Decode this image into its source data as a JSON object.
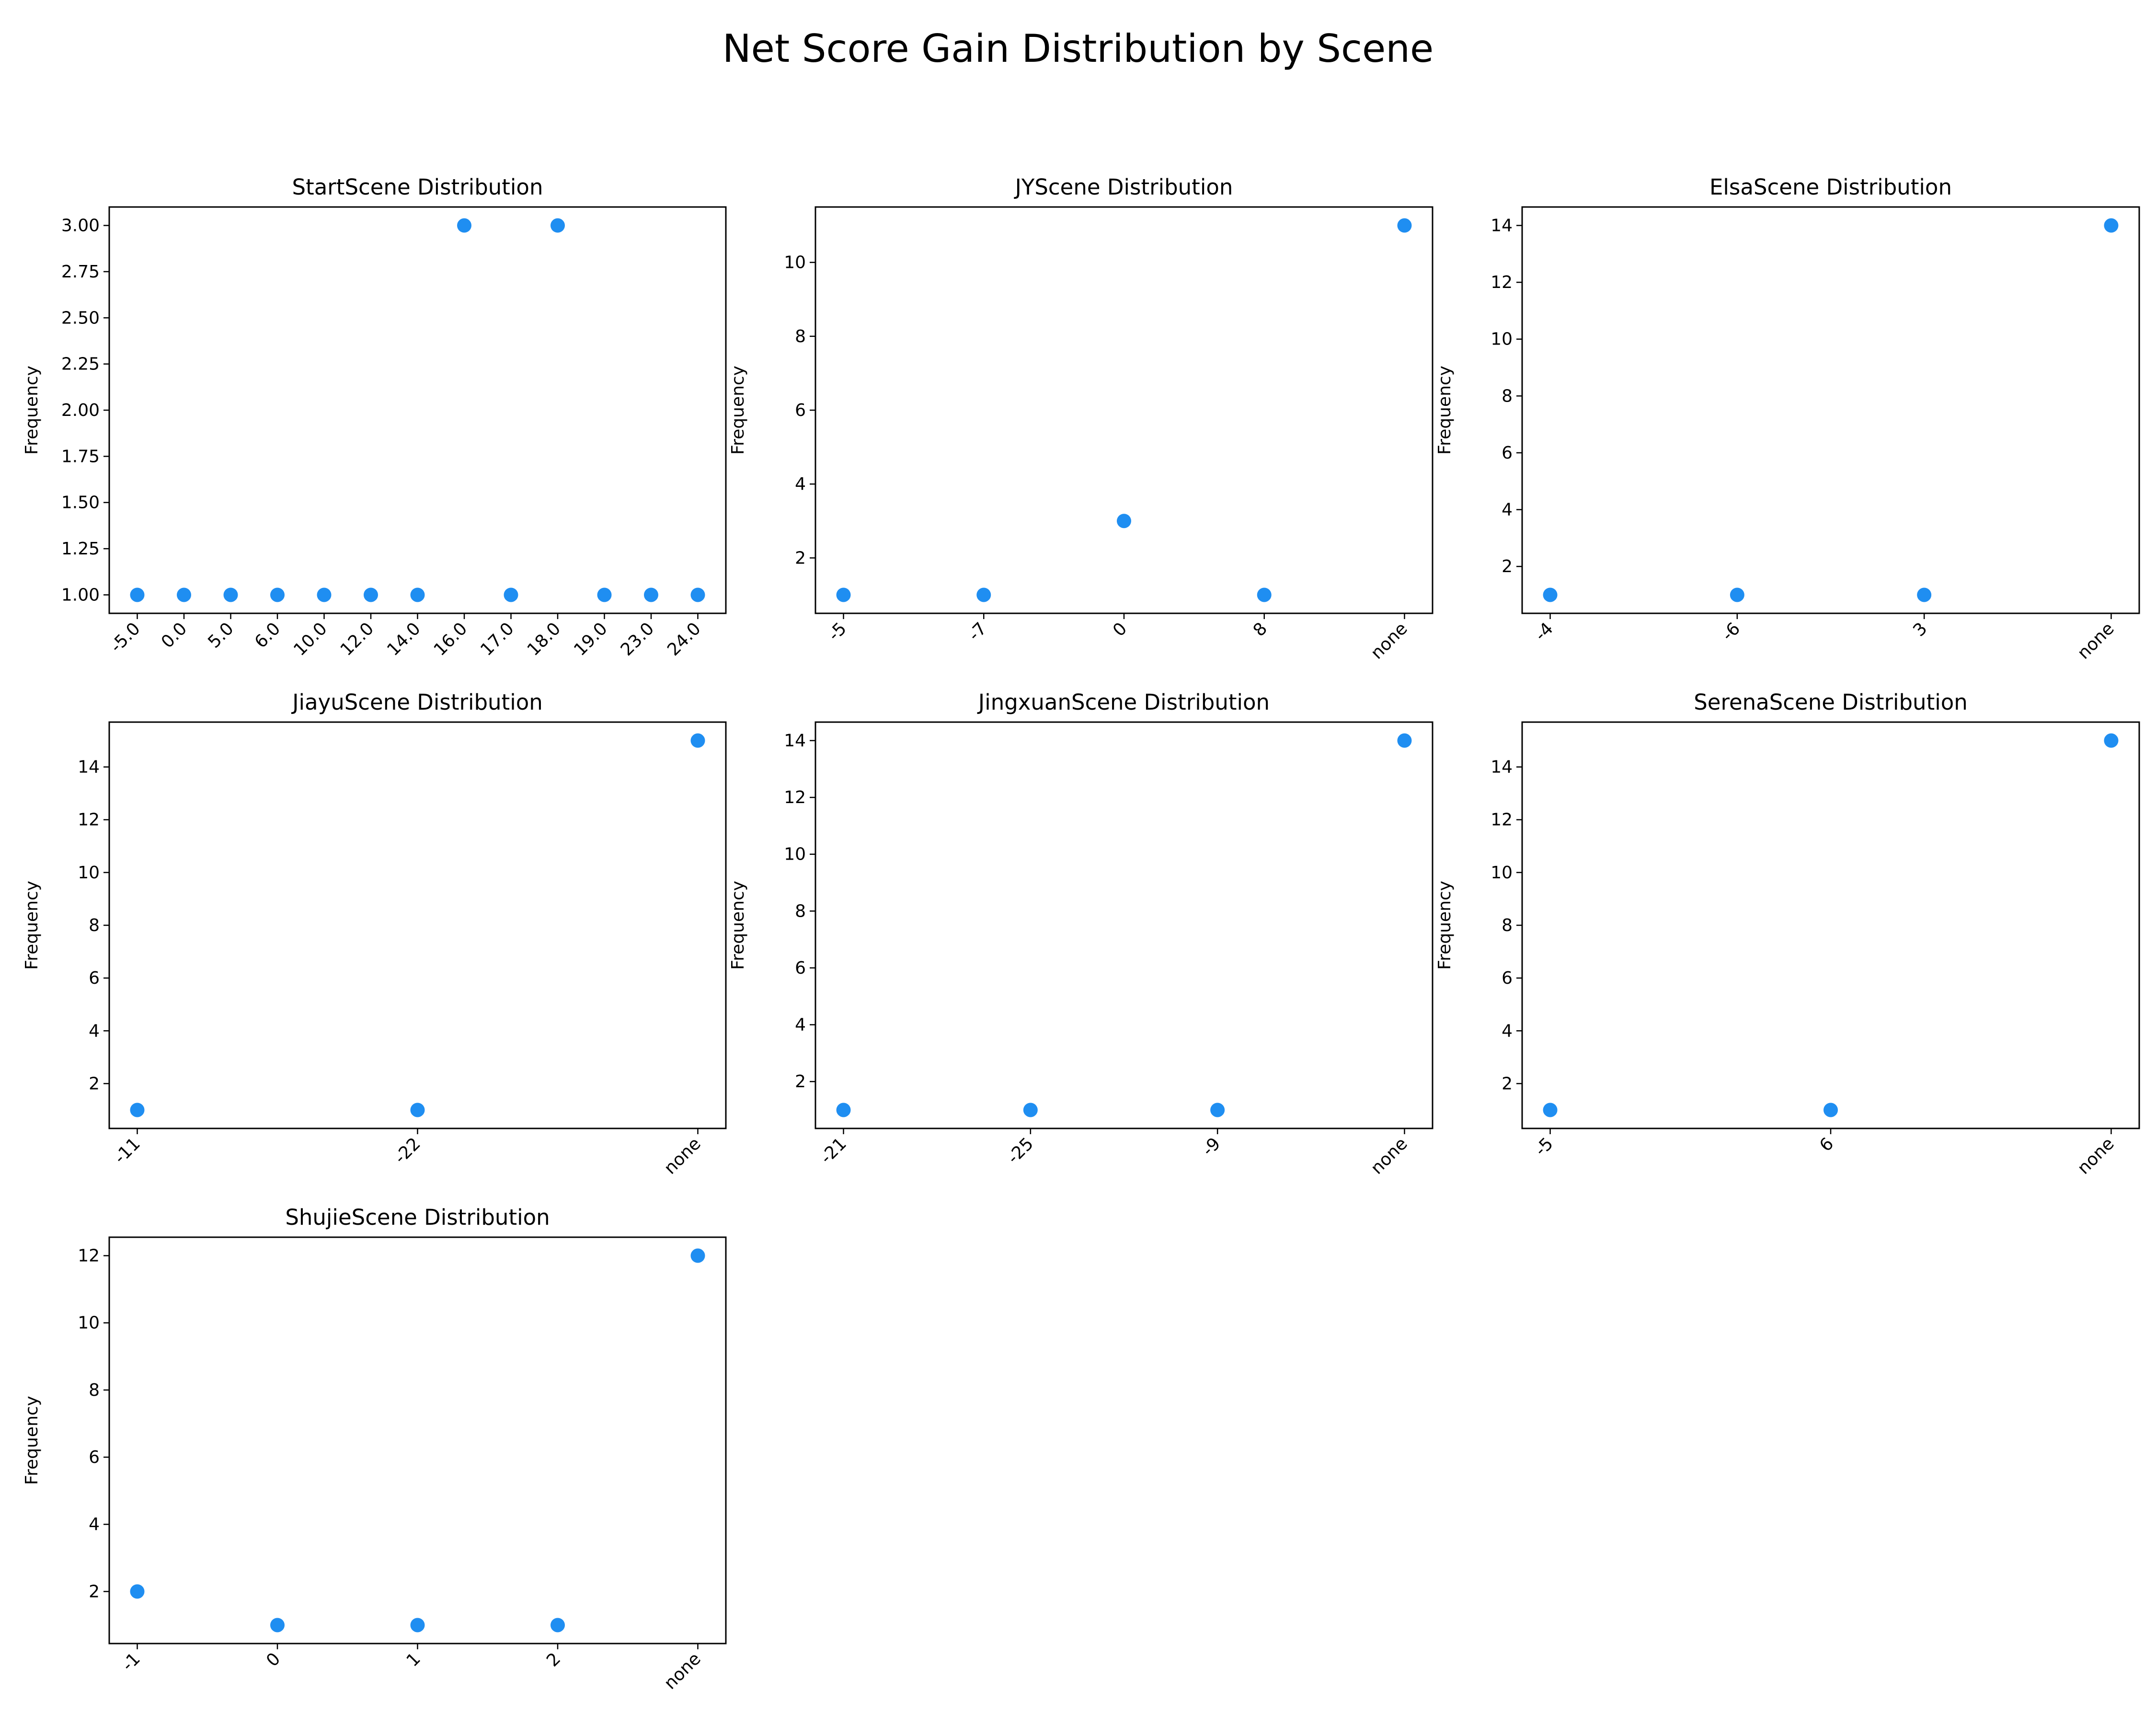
{
  "title": "Net Score Gain Distribution by Scene",
  "colors": {
    "marker": "#1f8ef1",
    "axis": "#000000"
  },
  "chart_data": [
    {
      "type": "scatter",
      "title": "StartScene Distribution",
      "ylabel": "Frequency",
      "categories": [
        "-5.0",
        "0.0",
        "5.0",
        "6.0",
        "10.0",
        "12.0",
        "14.0",
        "16.0",
        "17.0",
        "18.0",
        "19.0",
        "23.0",
        "24.0"
      ],
      "values": [
        1,
        1,
        1,
        1,
        1,
        1,
        1,
        3,
        1,
        3,
        1,
        1,
        1
      ],
      "ylim": [
        0.9,
        3.1
      ],
      "yticks": [
        1.0,
        1.25,
        1.5,
        1.75,
        2.0,
        2.25,
        2.5,
        2.75,
        3.0
      ],
      "ytick_labels": [
        "1.00",
        "1.25",
        "1.50",
        "1.75",
        "2.00",
        "2.25",
        "2.50",
        "2.75",
        "3.00"
      ]
    },
    {
      "type": "scatter",
      "title": "JYScene Distribution",
      "ylabel": "Frequency",
      "categories": [
        "-5",
        "-7",
        "0",
        "8",
        "none"
      ],
      "values": [
        1,
        1,
        3,
        1,
        11
      ],
      "ylim": [
        0.5,
        11.5
      ],
      "yticks": [
        2,
        4,
        6,
        8,
        10
      ],
      "ytick_labels": [
        "2",
        "4",
        "6",
        "8",
        "10"
      ]
    },
    {
      "type": "scatter",
      "title": "ElsaScene Distribution",
      "ylabel": "Frequency",
      "categories": [
        "-4",
        "-6",
        "3",
        "none"
      ],
      "values": [
        1,
        1,
        1,
        14
      ],
      "ylim": [
        0.35,
        14.65
      ],
      "yticks": [
        2,
        4,
        6,
        8,
        10,
        12,
        14
      ],
      "ytick_labels": [
        "2",
        "4",
        "6",
        "8",
        "10",
        "12",
        "14"
      ]
    },
    {
      "type": "scatter",
      "title": "JiayuScene Distribution",
      "ylabel": "Frequency",
      "categories": [
        "-11",
        "-22",
        "none"
      ],
      "values": [
        1,
        1,
        15
      ],
      "ylim": [
        0.3,
        15.7
      ],
      "yticks": [
        2,
        4,
        6,
        8,
        10,
        12,
        14
      ],
      "ytick_labels": [
        "2",
        "4",
        "6",
        "8",
        "10",
        "12",
        "14"
      ]
    },
    {
      "type": "scatter",
      "title": "JingxuanScene Distribution",
      "ylabel": "Frequency",
      "categories": [
        "-21",
        "-25",
        "-9",
        "none"
      ],
      "values": [
        1,
        1,
        1,
        14
      ],
      "ylim": [
        0.35,
        14.65
      ],
      "yticks": [
        2,
        4,
        6,
        8,
        10,
        12,
        14
      ],
      "ytick_labels": [
        "2",
        "4",
        "6",
        "8",
        "10",
        "12",
        "14"
      ]
    },
    {
      "type": "scatter",
      "title": "SerenaScene Distribution",
      "ylabel": "Frequency",
      "categories": [
        "-5",
        "6",
        "none"
      ],
      "values": [
        1,
        1,
        15
      ],
      "ylim": [
        0.3,
        15.7
      ],
      "yticks": [
        2,
        4,
        6,
        8,
        10,
        12,
        14
      ],
      "ytick_labels": [
        "2",
        "4",
        "6",
        "8",
        "10",
        "12",
        "14"
      ]
    },
    {
      "type": "scatter",
      "title": "ShujieScene Distribution",
      "ylabel": "Frequency",
      "categories": [
        "-1",
        "0",
        "1",
        "2",
        "none"
      ],
      "values": [
        2,
        1,
        1,
        1,
        12
      ],
      "ylim": [
        0.45,
        12.55
      ],
      "yticks": [
        2,
        4,
        6,
        8,
        10,
        12
      ],
      "ytick_labels": [
        "2",
        "4",
        "6",
        "8",
        "10",
        "12"
      ]
    }
  ]
}
